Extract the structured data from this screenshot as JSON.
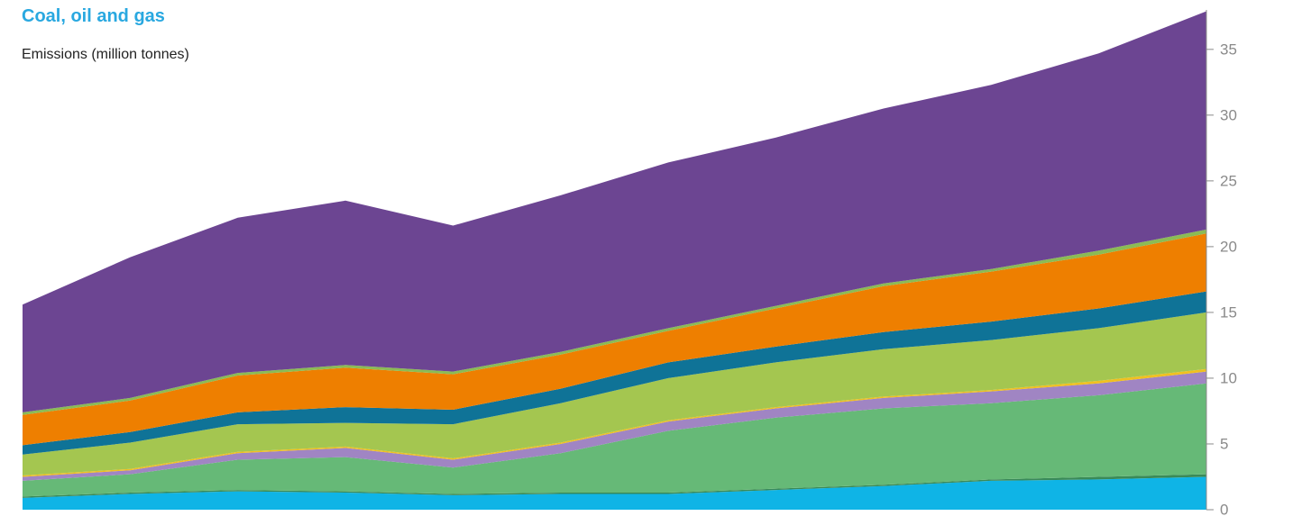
{
  "chart_data": {
    "type": "area",
    "stacked": true,
    "title": "Coal, oil and gas",
    "ylabel": "Emissions (million tonnes)",
    "ylim": [
      0,
      38
    ],
    "yticks": [
      0,
      5,
      10,
      15,
      20,
      25,
      30,
      35
    ],
    "y_axis_side": "right",
    "grid": false,
    "legend": "none",
    "x": [
      0,
      1,
      2,
      3,
      4,
      5,
      6,
      7,
      8,
      9,
      10,
      11
    ],
    "series": [
      {
        "color": "#0fb4e6",
        "values": [
          0.9,
          1.2,
          1.4,
          1.3,
          1.1,
          1.2,
          1.2,
          1.5,
          1.8,
          2.2,
          2.3,
          2.5
        ]
      },
      {
        "color": "#3a8a58",
        "values": [
          0.1,
          0.1,
          0.1,
          0.1,
          0.1,
          0.1,
          0.1,
          0.1,
          0.1,
          0.1,
          0.2,
          0.2
        ]
      },
      {
        "color": "#66b977",
        "values": [
          1.2,
          1.4,
          2.3,
          2.6,
          2.0,
          3.0,
          4.7,
          5.4,
          5.8,
          5.8,
          6.2,
          6.9
        ]
      },
      {
        "color": "#a085c3",
        "values": [
          0.3,
          0.3,
          0.5,
          0.7,
          0.6,
          0.7,
          0.7,
          0.7,
          0.8,
          0.9,
          0.9,
          0.9
        ]
      },
      {
        "color": "#f0c020",
        "values": [
          0.1,
          0.1,
          0.1,
          0.1,
          0.1,
          0.1,
          0.1,
          0.1,
          0.1,
          0.1,
          0.2,
          0.2
        ]
      },
      {
        "color": "#a4c650",
        "values": [
          1.6,
          2.0,
          2.1,
          1.8,
          2.6,
          3.0,
          3.2,
          3.4,
          3.6,
          3.8,
          4.0,
          4.3
        ]
      },
      {
        "color": "#0f7397",
        "values": [
          0.7,
          0.8,
          0.9,
          1.2,
          1.1,
          1.1,
          1.2,
          1.2,
          1.3,
          1.4,
          1.5,
          1.6
        ]
      },
      {
        "color": "#ee7f00",
        "values": [
          2.3,
          2.4,
          2.8,
          3.0,
          2.7,
          2.6,
          2.4,
          2.9,
          3.5,
          3.8,
          4.1,
          4.4
        ]
      },
      {
        "color": "#8bbb55",
        "values": [
          0.2,
          0.2,
          0.2,
          0.2,
          0.2,
          0.2,
          0.2,
          0.2,
          0.2,
          0.2,
          0.3,
          0.3
        ]
      },
      {
        "color": "#6c4592",
        "values": [
          8.2,
          10.7,
          11.8,
          12.5,
          11.1,
          11.9,
          12.6,
          12.8,
          13.3,
          14.0,
          15.0,
          16.6
        ]
      }
    ]
  }
}
